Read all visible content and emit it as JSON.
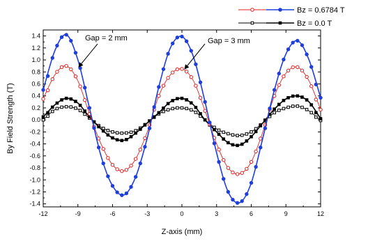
{
  "chart_data": {
    "type": "line",
    "title": "",
    "xlabel": "Z-axis (mm)",
    "ylabel": "By Field Strength (T)",
    "xlim": [
      -12,
      12
    ],
    "ylim": [
      -1.45,
      1.5
    ],
    "x_ticks": [
      "-12",
      "-9",
      "-6",
      "-3",
      "0",
      "3",
      "6",
      "9",
      "12"
    ],
    "y_ticks": [
      "-1.4",
      "-1.2",
      "-1.0",
      "-0.8",
      "-0.6",
      "-0.4",
      "-0.2",
      "0.0",
      "0.2",
      "0.4",
      "0.6",
      "0.8",
      "1.0",
      "1.2",
      "1.4"
    ],
    "grid": false,
    "legend_position": "top-right",
    "legend": [
      {
        "label": "Bz = 0.6784 T",
        "series_filled": "gap2-bz06784",
        "series_open": "gap3-bz06784"
      },
      {
        "label": "Bz = 0.0 T",
        "series_filled": "gap2-bz0",
        "series_open": "gap3-bz0"
      }
    ],
    "series": [
      {
        "key": "gap2-bz06784",
        "color": "#1f3fdc",
        "marker": "filled-circle",
        "x": [
          -12,
          -11,
          -10,
          -9,
          -8,
          -7,
          -6,
          -5,
          -4,
          -3,
          -2,
          -1,
          0,
          1,
          2,
          3,
          4,
          5,
          6,
          7,
          8,
          9,
          10,
          11,
          12
        ],
        "y": [
          0.5,
          1.15,
          1.42,
          1.0,
          0.2,
          -0.6,
          -1.1,
          -1.25,
          -0.95,
          -0.3,
          0.55,
          1.2,
          1.39,
          1.05,
          0.3,
          -0.55,
          -1.2,
          -1.38,
          -1.05,
          -0.3,
          0.5,
          1.1,
          1.32,
          1.0,
          0.37
        ]
      },
      {
        "key": "gap3-bz06784",
        "color": "#e02020",
        "marker": "open-circle",
        "x": [
          -12,
          -11,
          -10,
          -9,
          -8,
          -7,
          -6,
          -5,
          -4,
          -3,
          -2,
          -1,
          0,
          1,
          2,
          3,
          4,
          5,
          6,
          7,
          8,
          9,
          10,
          11,
          12
        ],
        "y": [
          0.35,
          0.75,
          0.9,
          0.65,
          0.1,
          -0.4,
          -0.75,
          -0.85,
          -0.65,
          -0.2,
          0.4,
          0.75,
          0.85,
          0.65,
          0.15,
          -0.4,
          -0.8,
          -0.9,
          -0.7,
          -0.2,
          0.4,
          0.78,
          0.88,
          0.65,
          0.17
        ]
      },
      {
        "key": "gap2-bz0",
        "color": "#000000",
        "marker": "filled-square",
        "x": [
          -12,
          -11,
          -10,
          -9,
          -8,
          -7,
          -6,
          -5,
          -4,
          -3,
          -2,
          -1,
          0,
          1,
          2,
          3,
          4,
          5,
          6,
          7,
          8,
          9,
          10,
          11,
          12
        ],
        "y": [
          0.05,
          0.25,
          0.36,
          0.28,
          0.05,
          -0.15,
          -0.3,
          -0.34,
          -0.22,
          -0.05,
          0.12,
          0.3,
          0.36,
          0.25,
          0.0,
          -0.2,
          -0.38,
          -0.42,
          -0.28,
          -0.05,
          0.18,
          0.35,
          0.4,
          0.3,
          0.02
        ]
      },
      {
        "key": "gap3-bz0",
        "color": "#000000",
        "marker": "open-square",
        "x": [
          -12,
          -11,
          -10,
          -9,
          -8,
          -7,
          -6,
          -5,
          -4,
          -3,
          -2,
          -1,
          0,
          1,
          2,
          3,
          4,
          5,
          6,
          7,
          8,
          9,
          10,
          11,
          12
        ],
        "y": [
          0.0,
          0.17,
          0.22,
          0.18,
          0.03,
          -0.12,
          -0.2,
          -0.22,
          -0.18,
          -0.05,
          0.1,
          0.18,
          0.2,
          0.15,
          0.0,
          -0.15,
          -0.23,
          -0.26,
          -0.2,
          -0.05,
          0.12,
          0.2,
          0.23,
          0.15,
          -0.01
        ]
      }
    ],
    "annotations": [
      {
        "text": "Gap = 2 mm",
        "points_to": "gap2-bz06784"
      },
      {
        "text": "Gap = 3 mm",
        "points_to": "gap3-bz06784"
      }
    ]
  }
}
